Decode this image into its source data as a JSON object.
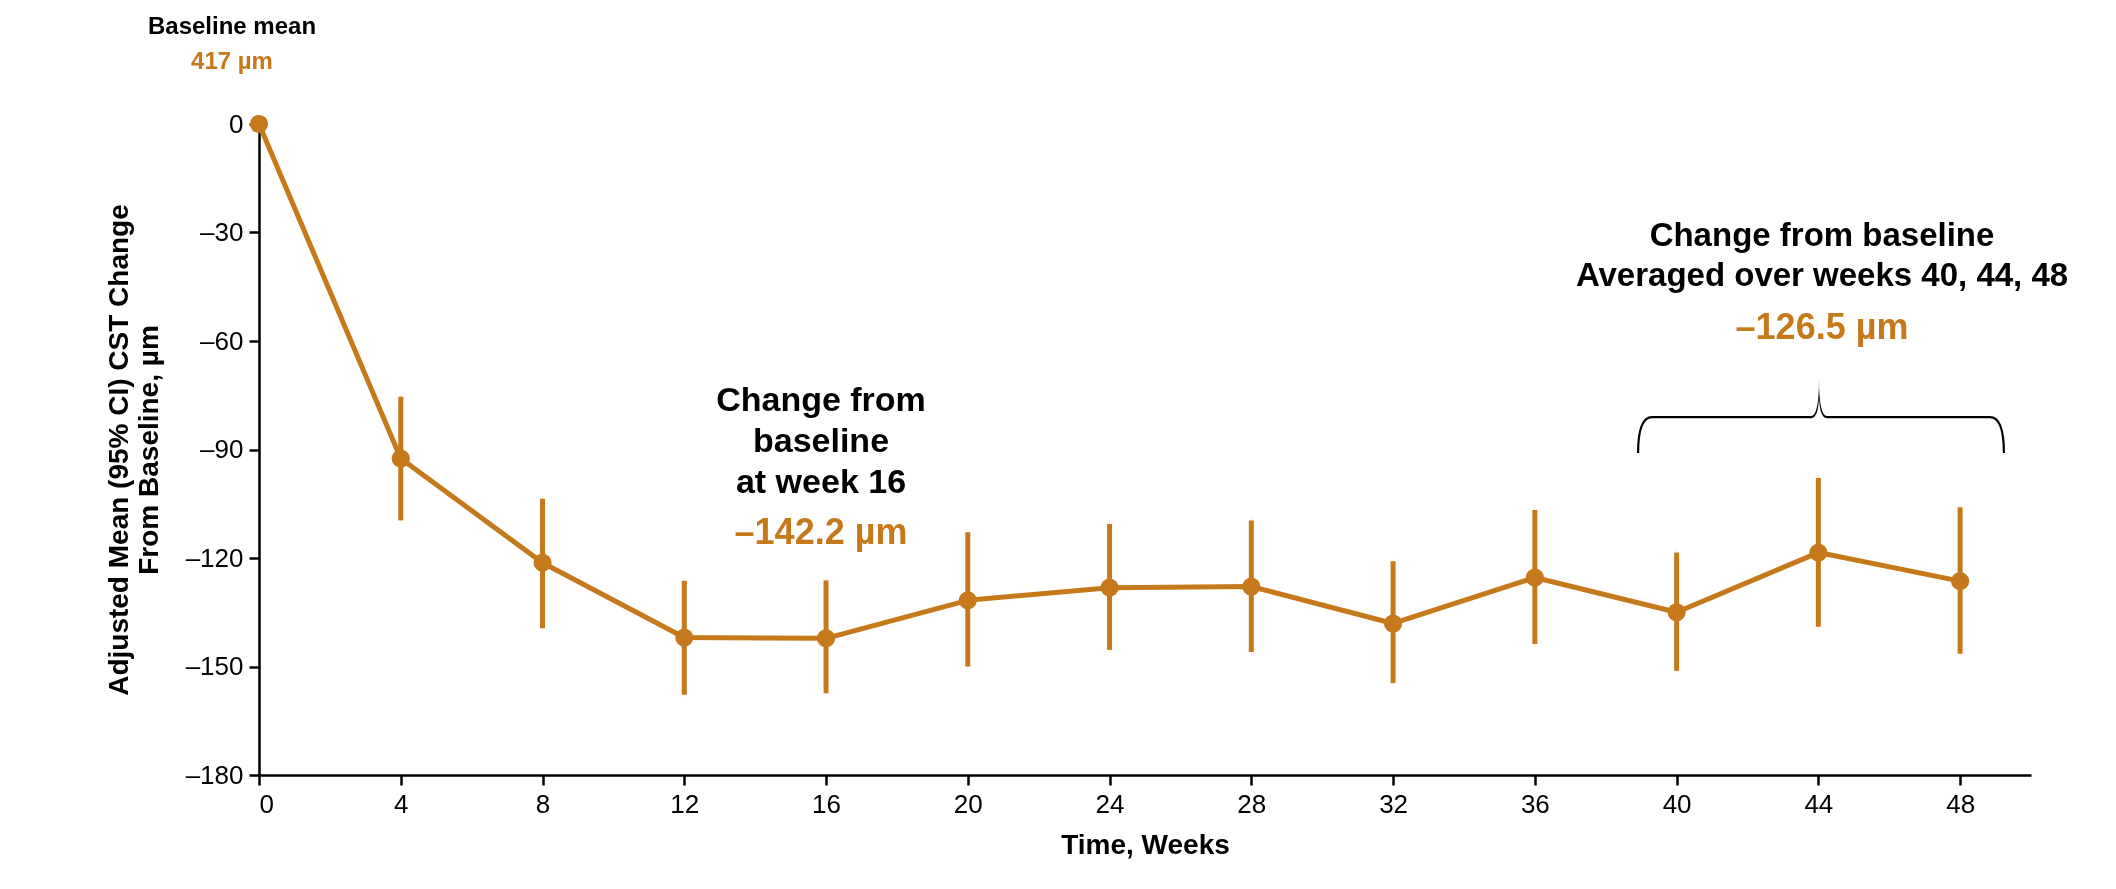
{
  "chart_data": {
    "type": "line",
    "xlabel": "Time, Weeks",
    "ylabel": "Adjusted Mean (95% CI) CST Change\nFrom Baseline, µm",
    "x": [
      0,
      4,
      8,
      12,
      16,
      20,
      24,
      28,
      32,
      36,
      40,
      44,
      48
    ],
    "series": [
      {
        "color": "#c6791a",
        "values": [
          0,
          -92.5,
          -121.3,
          -142.0,
          -142.2,
          -131.7,
          -128.2,
          -127.9,
          -138.1,
          -125.4,
          -135.0,
          -118.5,
          -126.4
        ],
        "errors": [
          null,
          [
            -109.6,
            -75.4
          ],
          [
            -139.4,
            -103.6
          ],
          [
            -157.8,
            -126.3
          ],
          [
            -157.4,
            -126.2
          ],
          [
            -150,
            -112.9
          ],
          [
            -145.4,
            -110.6
          ],
          [
            -146.0,
            -109.6
          ],
          [
            -154.6,
            -120.9
          ],
          [
            -143.8,
            -106.7
          ],
          [
            -151.2,
            -118.5
          ],
          [
            -139.0,
            -97.9
          ],
          [
            -146.5,
            -106.0
          ]
        ]
      }
    ],
    "xlim": [
      0,
      50
    ],
    "xticks": [
      0,
      4,
      8,
      12,
      16,
      20,
      24,
      28,
      32,
      36,
      40,
      44,
      48
    ],
    "ylim": [
      -180,
      0
    ],
    "yticks": [
      {
        "value": -180,
        "label": "–180"
      },
      {
        "value": -150,
        "label": "–150"
      },
      {
        "value": -120,
        "label": "–120"
      },
      {
        "value": -90,
        "label": "–90"
      },
      {
        "value": -60,
        "label": "–60"
      },
      {
        "value": -30,
        "label": "–30"
      },
      0
    ],
    "grid": false,
    "marker": "circle",
    "line_style": "solid",
    "annotations": [
      "Baseline mean",
      "417 µm",
      "Change from\nbaseline\nat week 16",
      "–142.2 µm",
      "Change from baseline\nAveraged over weeks 40, 44, 48",
      "–126.5 µm"
    ]
  }
}
